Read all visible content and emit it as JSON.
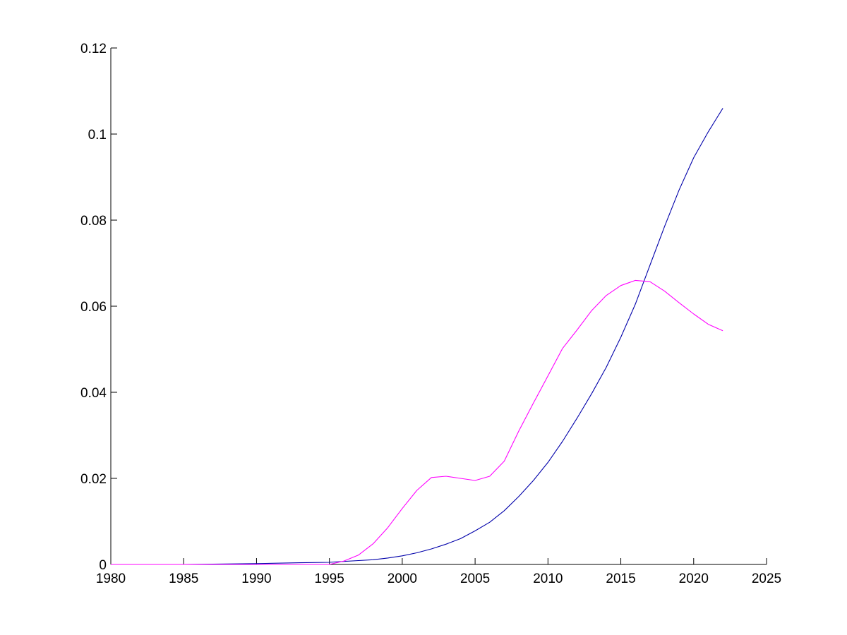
{
  "chart_data": {
    "type": "line",
    "title": "",
    "xlabel": "",
    "ylabel": "",
    "xlim": [
      1980,
      2025
    ],
    "ylim": [
      0,
      0.12
    ],
    "grid": false,
    "legend": "none",
    "x_ticks": [
      "1980",
      "1985",
      "1990",
      "1995",
      "2000",
      "2005",
      "2010",
      "2015",
      "2020",
      "2025"
    ],
    "y_ticks": [
      "0",
      "0.02",
      "0.04",
      "0.06",
      "0.08",
      "0.1",
      "0.12"
    ],
    "x_tick_values": [
      1980,
      1985,
      1990,
      1995,
      2000,
      2005,
      2010,
      2015,
      2020,
      2025
    ],
    "y_tick_values": [
      0,
      0.02,
      0.04,
      0.06,
      0.08,
      0.1,
      0.12
    ],
    "series": [
      {
        "color": "#0000aa",
        "x": [
          1980,
          1985,
          1990,
          1993,
          1995,
          1996,
          1997,
          1998,
          1999,
          2000,
          2001,
          2002,
          2003,
          2004,
          2005,
          2006,
          2007,
          2008,
          2009,
          2010,
          2011,
          2012,
          2013,
          2014,
          2015,
          2016,
          2017,
          2018,
          2019,
          2020,
          2021,
          2022
        ],
        "y": [
          0,
          0,
          0.0002,
          0.0004,
          0.0005,
          0.0007,
          0.0009,
          0.0011,
          0.0015,
          0.002,
          0.0027,
          0.0036,
          0.0047,
          0.006,
          0.0078,
          0.0098,
          0.0125,
          0.0158,
          0.0195,
          0.0237,
          0.0286,
          0.034,
          0.0397,
          0.0458,
          0.0528,
          0.0605,
          0.0695,
          0.0785,
          0.087,
          0.0945,
          0.1005,
          0.106
        ]
      },
      {
        "color": "#ff00ff",
        "x": [
          1980,
          1985,
          1990,
          1995,
          1996,
          1997,
          1998,
          1999,
          2000,
          2001,
          2002,
          2003,
          2004,
          2005,
          2006,
          2007,
          2008,
          2009,
          2010,
          2011,
          2012,
          2013,
          2014,
          2015,
          2016,
          2017,
          2018,
          2019,
          2020,
          2021,
          2022
        ],
        "y": [
          0,
          0,
          0,
          0,
          0.0008,
          0.0022,
          0.0048,
          0.0085,
          0.013,
          0.0172,
          0.0202,
          0.0205,
          0.02,
          0.0195,
          0.0205,
          0.024,
          0.031,
          0.0375,
          0.0438,
          0.0502,
          0.0545,
          0.059,
          0.0625,
          0.0648,
          0.066,
          0.0657,
          0.0635,
          0.0608,
          0.0582,
          0.0558,
          0.0543
        ]
      }
    ]
  }
}
